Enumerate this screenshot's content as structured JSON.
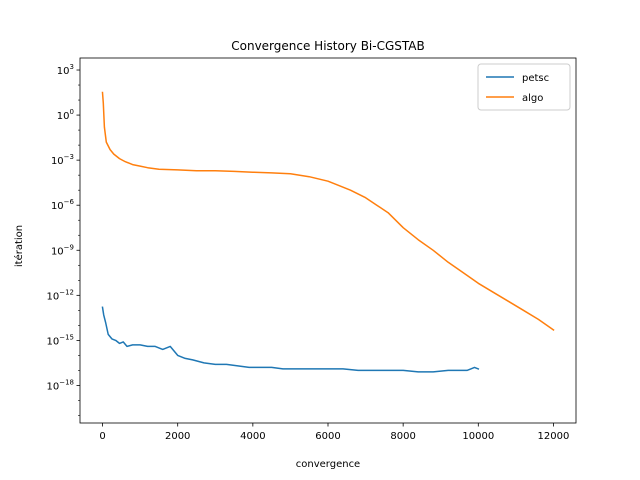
{
  "chart_data": {
    "type": "line",
    "title": "Convergence History Bi-CGSTAB",
    "xlabel": "convergence",
    "ylabel": "itération",
    "xlim": [
      -600,
      12600
    ],
    "ylim_exp": [
      -20.5,
      3.8
    ],
    "log_y": true,
    "grid": false,
    "legend_position": "top-right",
    "x_ticks": [
      0,
      2000,
      4000,
      6000,
      8000,
      10000,
      12000
    ],
    "x_tick_labels": [
      "0",
      "2000",
      "4000",
      "6000",
      "8000",
      "10000",
      "12000"
    ],
    "y_tick_exps": [
      3,
      0,
      -3,
      -6,
      -9,
      -12,
      -15,
      -18
    ],
    "y_tick_labels": [
      "10",
      "10",
      "10",
      "10",
      "10",
      "10",
      "10",
      "10"
    ],
    "y_tick_sups": [
      "3",
      "0",
      "−3",
      "−6",
      "−9",
      "−12",
      "−15",
      "−18"
    ],
    "series": [
      {
        "name": "petsc",
        "color": "#1f77b4",
        "x": [
          0,
          30,
          80,
          150,
          250,
          350,
          450,
          550,
          650,
          800,
          1000,
          1200,
          1400,
          1600,
          1800,
          2000,
          2200,
          2400,
          2700,
          3000,
          3300,
          3600,
          3900,
          4200,
          4500,
          4800,
          5200,
          5600,
          6000,
          6400,
          6800,
          7200,
          7600,
          8000,
          8400,
          8800,
          9200,
          9500,
          9700,
          9800,
          9900,
          10000
        ],
        "y_exp": [
          -12.8,
          -13.3,
          -13.8,
          -14.6,
          -14.9,
          -15.0,
          -15.2,
          -15.1,
          -15.4,
          -15.3,
          -15.3,
          -15.4,
          -15.4,
          -15.6,
          -15.4,
          -16.0,
          -16.2,
          -16.3,
          -16.5,
          -16.6,
          -16.6,
          -16.7,
          -16.8,
          -16.8,
          -16.8,
          -16.9,
          -16.9,
          -16.9,
          -16.9,
          -16.9,
          -17.0,
          -17.0,
          -17.0,
          -17.0,
          -17.1,
          -17.1,
          -17.0,
          -17.0,
          -17.0,
          -16.9,
          -16.8,
          -16.9
        ]
      },
      {
        "name": "algo",
        "color": "#ff7f0e",
        "x": [
          0,
          20,
          50,
          100,
          200,
          300,
          450,
          600,
          800,
          1000,
          1200,
          1500,
          2000,
          2500,
          3000,
          3500,
          4000,
          4500,
          5000,
          5500,
          6000,
          6300,
          6600,
          7000,
          7300,
          7600,
          8000,
          8400,
          8800,
          9200,
          9600,
          10000,
          10400,
          10800,
          11200,
          11600,
          12000
        ],
        "y_exp": [
          1.5,
          0.8,
          -0.8,
          -1.8,
          -2.3,
          -2.6,
          -2.9,
          -3.1,
          -3.3,
          -3.4,
          -3.5,
          -3.6,
          -3.65,
          -3.7,
          -3.7,
          -3.75,
          -3.8,
          -3.85,
          -3.9,
          -4.1,
          -4.4,
          -4.7,
          -5.0,
          -5.5,
          -6.0,
          -6.5,
          -7.5,
          -8.3,
          -9.0,
          -9.8,
          -10.5,
          -11.2,
          -11.8,
          -12.4,
          -13.0,
          -13.6,
          -14.3
        ]
      }
    ]
  }
}
